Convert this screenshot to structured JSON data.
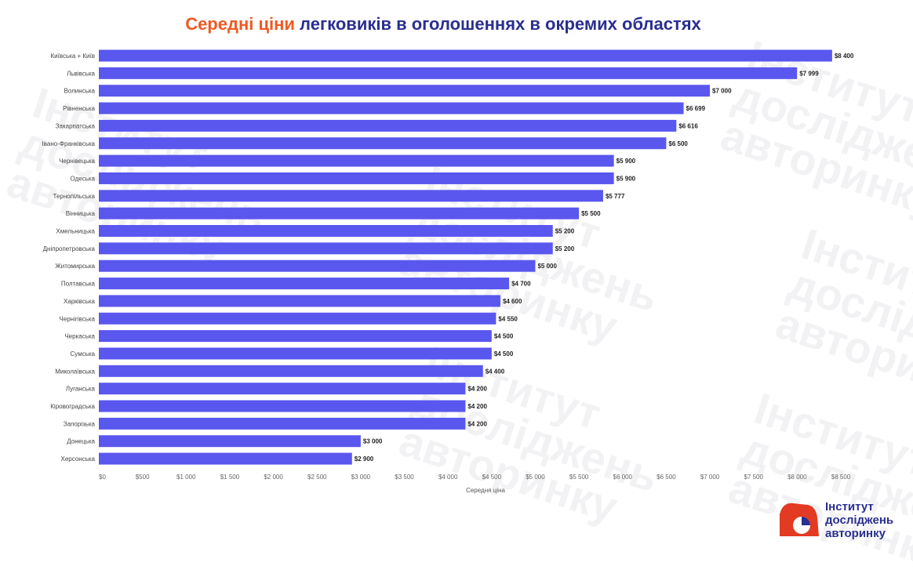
{
  "title": {
    "accent": "Середні ціни",
    "rest": "легковиків в оголошеннях в окремих областях"
  },
  "watermark": {
    "lines": [
      "Інститут",
      "досліджень",
      "авторинку"
    ]
  },
  "logo": {
    "lines": [
      "Інститут",
      "досліджень",
      "авторинку"
    ]
  },
  "colors": {
    "bar": "#5a57ee",
    "title_accent": "#ee5a24",
    "title_main": "#2a2f8f",
    "logo_red": "#e23a23",
    "logo_blue": "#2a2f8f"
  },
  "chart_data": {
    "type": "bar",
    "orientation": "horizontal",
    "categories": [
      "Київська + Київ",
      "Львівська",
      "Волинська",
      "Рівненська",
      "Закарпатська",
      "Івано-Франківська",
      "Чернівецька",
      "Одеська",
      "Тернопільська",
      "Вінницька",
      "Хмельницька",
      "Дніпропетровська",
      "Житомирська",
      "Полтавська",
      "Харківська",
      "Чернігівська",
      "Черкаська",
      "Сумська",
      "Миколаївська",
      "Луганська",
      "Кіровоградська",
      "Запорізька",
      "Донецька",
      "Херсонська"
    ],
    "values": [
      8400,
      7999,
      7000,
      6699,
      6616,
      6500,
      5900,
      5900,
      5777,
      5500,
      5200,
      5200,
      5000,
      4700,
      4600,
      4550,
      4500,
      4500,
      4400,
      4200,
      4200,
      4200,
      3000,
      2900
    ],
    "value_labels": [
      "$8 400",
      "$7 999",
      "$7 000",
      "$6 699",
      "$6 616",
      "$6 500",
      "$5 900",
      "$5 900",
      "$5 777",
      "$5 500",
      "$5 200",
      "$5 200",
      "$5 000",
      "$4 700",
      "$4 600",
      "$4 550",
      "$4 500",
      "$4 500",
      "$4 400",
      "$4 200",
      "$4 200",
      "$4 200",
      "$3 000",
      "$2 900"
    ],
    "x_ticks": [
      0,
      500,
      1000,
      1500,
      2000,
      2500,
      3000,
      3500,
      4000,
      4500,
      5000,
      5500,
      6000,
      6500,
      7000,
      7500,
      8000,
      8500
    ],
    "x_tick_labels": [
      "$0",
      "$500",
      "$1 000",
      "$1 500",
      "$2 000",
      "$2 500",
      "$3 000",
      "$3 500",
      "$4 000",
      "$4 500",
      "$5 000",
      "$5 500",
      "$6 000",
      "$6 500",
      "$7 000",
      "$7 500",
      "$8 000",
      "$8 500"
    ],
    "xlim": [
      0,
      8500
    ],
    "xlabel": "Середня ціна",
    "ylabel": "",
    "grid": false,
    "legend": "none"
  }
}
